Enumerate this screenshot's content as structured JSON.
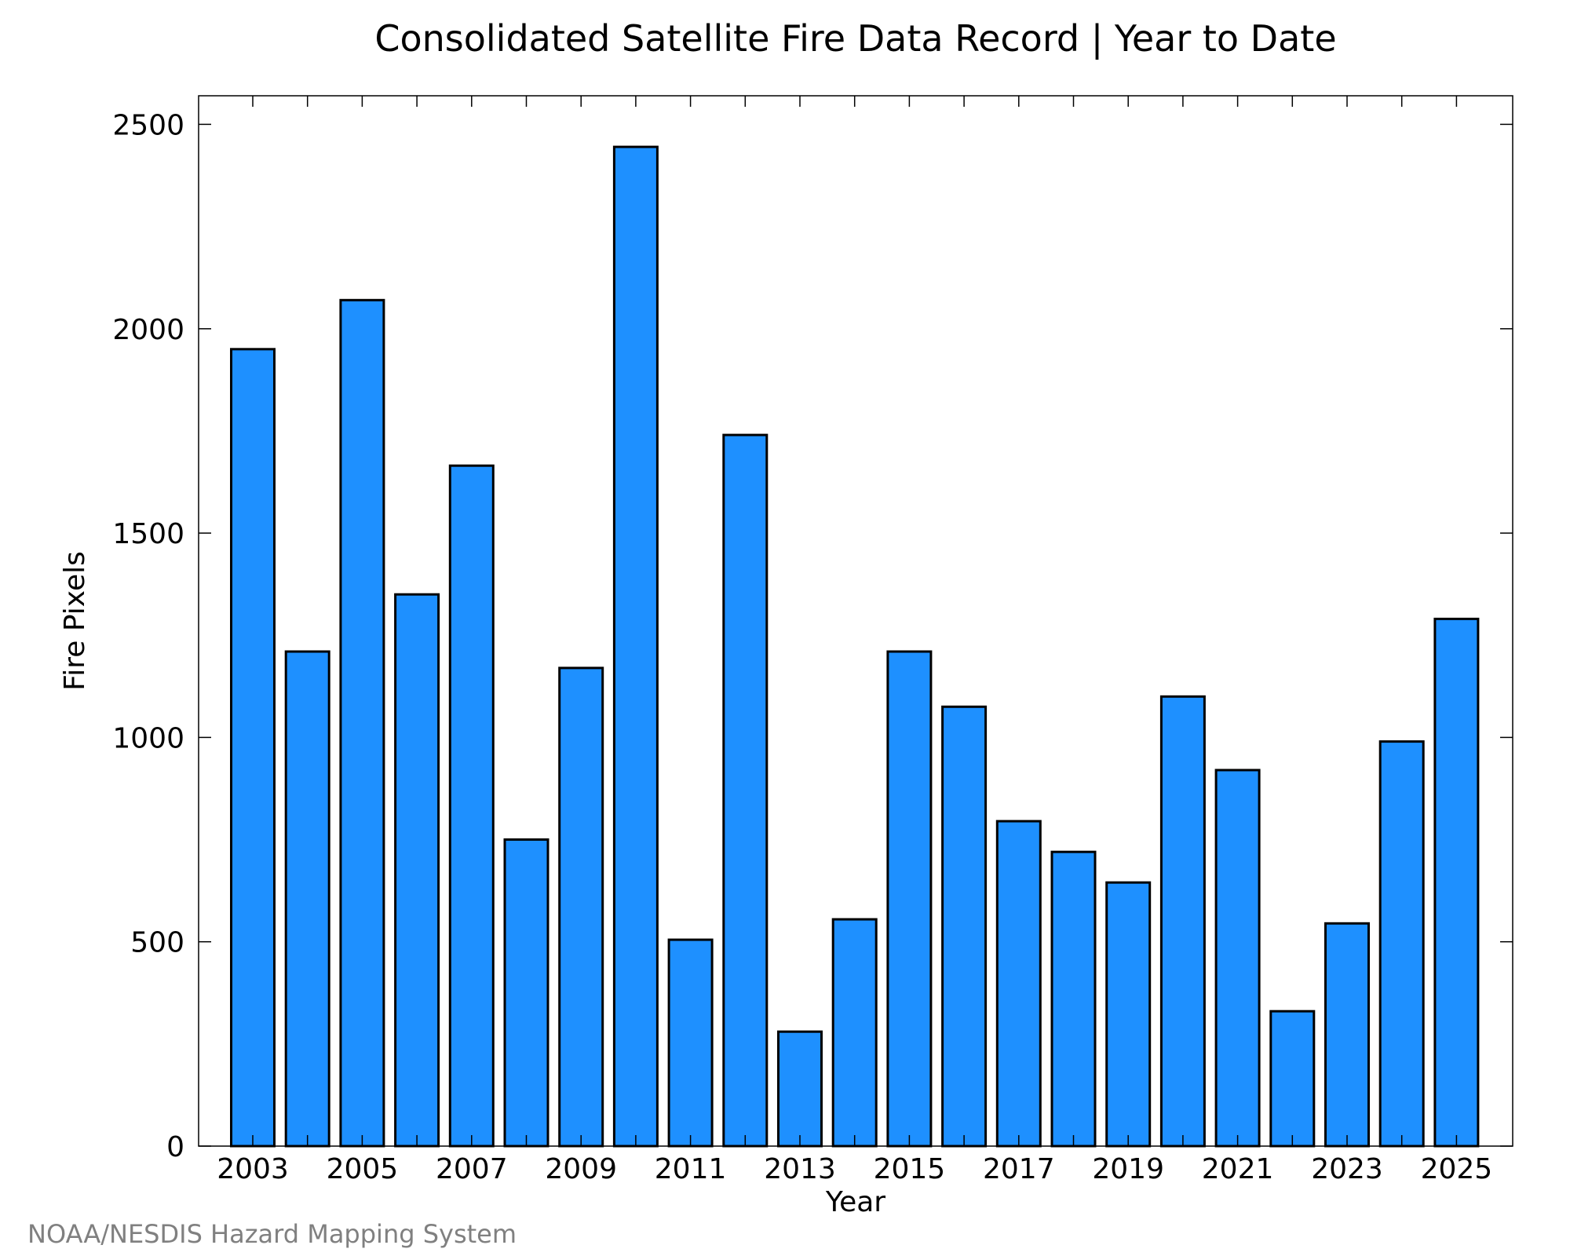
{
  "chart_data": {
    "type": "bar",
    "title": "Consolidated Satellite Fire Data Record | Year to Date",
    "xlabel": "Year",
    "ylabel": "Fire Pixels",
    "categories": [
      "2003",
      "2004",
      "2005",
      "2006",
      "2007",
      "2008",
      "2009",
      "2010",
      "2011",
      "2012",
      "2013",
      "2014",
      "2015",
      "2016",
      "2017",
      "2018",
      "2019",
      "2020",
      "2021",
      "2022",
      "2023",
      "2024",
      "2025"
    ],
    "values": [
      1950,
      1210,
      2070,
      1350,
      1665,
      750,
      1170,
      2445,
      505,
      1740,
      280,
      555,
      1210,
      1075,
      795,
      720,
      645,
      1100,
      920,
      330,
      545,
      990,
      1290
    ],
    "x_tick_labels": [
      "2003",
      "2005",
      "2007",
      "2009",
      "2011",
      "2013",
      "2015",
      "2017",
      "2019",
      "2021",
      "2023",
      "2025"
    ],
    "y_ticks": [
      0,
      500,
      1000,
      1500,
      2000,
      2500
    ],
    "ylim": [
      0,
      2570
    ],
    "grid": false,
    "legend": "none",
    "bar_color": "#1e90ff",
    "edge_color": "#000000"
  },
  "credit": {
    "text": "NOAA/NESDIS Hazard Mapping System",
    "color": "#808080"
  }
}
